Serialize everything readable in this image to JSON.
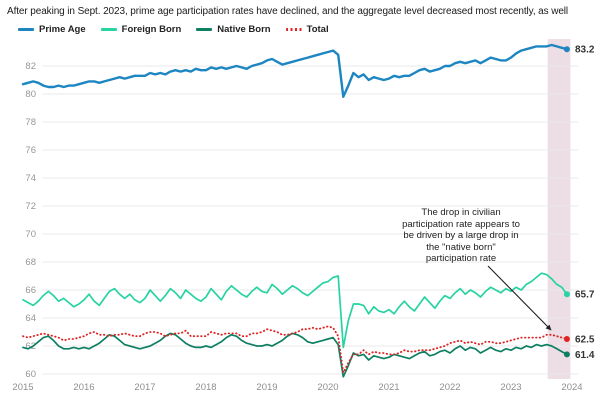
{
  "title": "After peaking in Sept. 2023, prime age participation rates have declined, and the aggregate level decreased most recently, as well",
  "legend": [
    {
      "label": "Prime Age",
      "color": "#1d86c2",
      "style": "solid"
    },
    {
      "label": "Foreign Born",
      "color": "#27d3a2",
      "style": "solid"
    },
    {
      "label": "Native Born",
      "color": "#0e7f62",
      "style": "solid"
    },
    {
      "label": "Total",
      "color": "#e02222",
      "style": "dotted"
    }
  ],
  "annotation": {
    "text": "The drop in civilian\nparticipation rate appears to\nbe driven by a large drop in\nthe \"native born\"\nparticipation rate"
  },
  "chart_data": {
    "type": "line",
    "x_unit": "month",
    "x_range": [
      "2015-01",
      "2023-12"
    ],
    "categories": [
      "2015",
      "2016",
      "2017",
      "2018",
      "2019",
      "2020",
      "2021",
      "2022",
      "2023",
      "2024"
    ],
    "y_ticks": [
      60,
      62,
      64,
      66,
      68,
      70,
      72,
      74,
      76,
      78,
      80,
      82
    ],
    "ylim": [
      59.5,
      84
    ],
    "grid": "horizontal",
    "highlight_band": {
      "from": "2023-09",
      "to": "2023-12",
      "color": "#ecdee4"
    },
    "series": [
      {
        "name": "Prime Age",
        "color": "#1d86c2",
        "style": "solid",
        "width": 2.4,
        "end_label": "83.2",
        "values": [
          80.7,
          80.8,
          80.9,
          80.8,
          80.6,
          80.5,
          80.5,
          80.6,
          80.5,
          80.6,
          80.6,
          80.7,
          80.8,
          80.9,
          80.9,
          80.8,
          80.9,
          81.0,
          81.1,
          81.2,
          81.1,
          81.2,
          81.3,
          81.3,
          81.3,
          81.5,
          81.4,
          81.5,
          81.4,
          81.6,
          81.7,
          81.6,
          81.7,
          81.6,
          81.8,
          81.7,
          81.7,
          81.9,
          81.8,
          81.9,
          81.8,
          81.9,
          82.0,
          81.9,
          81.8,
          82.0,
          82.1,
          82.2,
          82.4,
          82.5,
          82.3,
          82.1,
          82.2,
          82.3,
          82.4,
          82.5,
          82.6,
          82.7,
          82.8,
          82.9,
          83.0,
          83.1,
          82.8,
          79.8,
          80.6,
          81.5,
          81.2,
          81.4,
          81.0,
          81.2,
          81.1,
          81.0,
          81.1,
          81.3,
          81.2,
          81.3,
          81.3,
          81.5,
          81.7,
          81.8,
          81.6,
          81.7,
          81.8,
          82.0,
          82.0,
          82.2,
          82.3,
          82.2,
          82.3,
          82.4,
          82.2,
          82.4,
          82.6,
          82.5,
          82.4,
          82.4,
          82.6,
          82.9,
          83.1,
          83.2,
          83.3,
          83.4,
          83.4,
          83.4,
          83.5,
          83.4,
          83.3,
          83.2
        ]
      },
      {
        "name": "Foreign Born",
        "color": "#27d3a2",
        "style": "solid",
        "width": 1.7,
        "end_label": "65.7",
        "values": [
          65.3,
          65.1,
          64.9,
          65.2,
          65.6,
          65.9,
          65.6,
          65.2,
          65.4,
          65.1,
          64.8,
          65.0,
          65.3,
          65.7,
          65.2,
          64.9,
          65.4,
          65.9,
          66.1,
          65.7,
          65.4,
          65.7,
          65.3,
          65.1,
          65.4,
          66.0,
          65.6,
          65.2,
          65.6,
          66.1,
          65.8,
          65.4,
          66.0,
          65.7,
          65.4,
          65.2,
          65.5,
          66.1,
          65.7,
          65.3,
          65.9,
          66.3,
          66.0,
          65.7,
          65.5,
          65.9,
          66.2,
          65.9,
          65.8,
          66.4,
          66.1,
          65.7,
          66.0,
          66.3,
          66.1,
          65.8,
          65.6,
          65.9,
          66.2,
          66.5,
          66.6,
          66.9,
          67.0,
          61.9,
          63.8,
          65.0,
          65.0,
          64.9,
          64.3,
          64.8,
          64.5,
          64.4,
          64.6,
          64.3,
          64.8,
          65.2,
          64.8,
          64.5,
          65.0,
          65.5,
          65.1,
          64.7,
          65.2,
          65.6,
          65.4,
          65.8,
          66.1,
          65.7,
          66.0,
          65.8,
          65.5,
          65.9,
          66.2,
          66.0,
          65.8,
          66.1,
          65.9,
          66.2,
          66.0,
          66.4,
          66.6,
          66.9,
          67.2,
          67.1,
          66.8,
          66.4,
          66.2,
          65.7
        ]
      },
      {
        "name": "Native Born",
        "color": "#0e7f62",
        "style": "solid",
        "width": 1.7,
        "end_label": "61.4",
        "values": [
          61.9,
          61.8,
          62.0,
          62.3,
          62.6,
          62.7,
          62.4,
          62.0,
          61.8,
          61.8,
          61.9,
          61.8,
          61.9,
          61.8,
          62.0,
          62.2,
          62.5,
          62.8,
          62.7,
          62.4,
          62.1,
          62.0,
          61.9,
          61.8,
          61.9,
          62.0,
          62.2,
          62.4,
          62.7,
          62.9,
          62.8,
          62.5,
          62.2,
          62.0,
          61.9,
          61.9,
          62.0,
          61.9,
          62.1,
          62.3,
          62.6,
          62.8,
          62.7,
          62.4,
          62.2,
          62.1,
          62.0,
          62.0,
          62.1,
          62.0,
          62.2,
          62.4,
          62.7,
          62.9,
          62.8,
          62.6,
          62.3,
          62.2,
          62.3,
          62.4,
          62.5,
          62.6,
          62.1,
          59.8,
          60.6,
          61.5,
          61.3,
          61.4,
          61.0,
          61.3,
          61.2,
          61.1,
          61.2,
          61.4,
          61.3,
          61.2,
          61.1,
          61.3,
          61.5,
          61.6,
          61.3,
          61.4,
          61.6,
          61.7,
          61.5,
          61.8,
          62.0,
          61.7,
          61.9,
          61.8,
          61.5,
          61.7,
          61.9,
          61.7,
          61.6,
          61.8,
          61.7,
          61.9,
          61.8,
          62.0,
          61.9,
          62.1,
          62.0,
          62.1,
          62.0,
          61.8,
          61.6,
          61.4
        ]
      },
      {
        "name": "Total",
        "color": "#e02222",
        "style": "dotted",
        "width": 1.8,
        "end_label": "62.5",
        "values": [
          62.7,
          62.6,
          62.7,
          62.8,
          62.9,
          62.8,
          62.7,
          62.6,
          62.4,
          62.5,
          62.5,
          62.6,
          62.7,
          62.9,
          63.0,
          62.8,
          62.8,
          62.7,
          62.8,
          62.8,
          62.9,
          62.8,
          62.7,
          62.7,
          62.9,
          63.0,
          63.0,
          62.9,
          62.7,
          62.8,
          62.9,
          62.9,
          63.1,
          62.7,
          62.7,
          62.7,
          62.7,
          63.0,
          62.9,
          62.8,
          62.9,
          62.9,
          62.9,
          62.7,
          62.7,
          62.9,
          62.9,
          63.0,
          63.2,
          63.1,
          63.0,
          62.8,
          62.8,
          62.9,
          63.0,
          63.2,
          63.2,
          63.3,
          63.2,
          63.3,
          63.4,
          63.3,
          62.7,
          60.1,
          60.8,
          61.4,
          61.4,
          61.7,
          61.4,
          61.6,
          61.5,
          61.5,
          61.4,
          61.4,
          61.5,
          61.7,
          61.6,
          61.6,
          61.7,
          61.7,
          61.7,
          61.8,
          61.9,
          62.0,
          62.2,
          62.3,
          62.4,
          62.2,
          62.3,
          62.2,
          62.1,
          62.3,
          62.3,
          62.2,
          62.2,
          62.3,
          62.4,
          62.5,
          62.6,
          62.6,
          62.6,
          62.6,
          62.6,
          62.8,
          62.8,
          62.7,
          62.6,
          62.5
        ]
      }
    ]
  }
}
